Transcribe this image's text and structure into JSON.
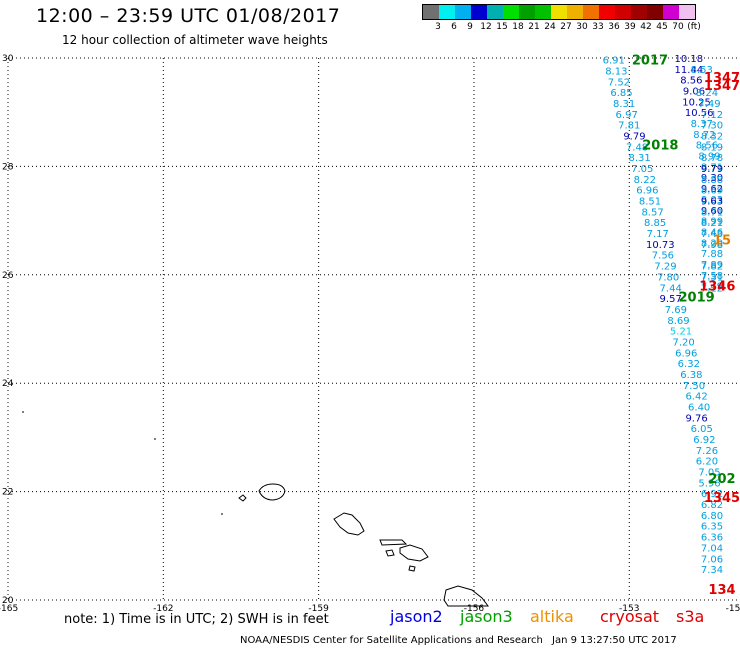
{
  "header": {
    "title": "12:00 – 23:59 UTC 01/08/2017",
    "subtitle": "12 hour collection of altimeter wave heights"
  },
  "legend": {
    "colors": [
      "#707070",
      "#00f0f0",
      "#00b0f0",
      "#0000d0",
      "#00b0b0",
      "#00e000",
      "#00a000",
      "#00c000",
      "#f0e000",
      "#f0b000",
      "#f07000",
      "#f00000",
      "#d00000",
      "#a00000",
      "#800000",
      "#d000d0",
      "#f0c0f0"
    ],
    "labels": [
      "3",
      "6",
      "9",
      "12",
      "15",
      "18",
      "21",
      "24",
      "27",
      "30",
      "33",
      "36",
      "39",
      "42",
      "45",
      "70",
      "(ft)"
    ]
  },
  "map": {
    "lon_ticks": [
      "-165",
      "-162",
      "-159",
      "-156",
      "-153",
      "-15"
    ],
    "lat_ticks": [
      "30",
      "28",
      "26",
      "24",
      "22",
      "20"
    ],
    "lon_range": [
      -165,
      -150.9
    ],
    "lat_range": [
      20,
      30
    ],
    "track_labels": [
      {
        "text": "2017",
        "lon": -152.6,
        "lat": 29.97,
        "color": "#008000"
      },
      {
        "text": "2018",
        "lon": -152.4,
        "lat": 28.4,
        "color": "#008000"
      },
      {
        "text": "2019",
        "lon": -151.7,
        "lat": 25.6,
        "color": "#008000"
      },
      {
        "text": "202",
        "lon": -151.0,
        "lat": 22.25,
        "color": "#008000"
      },
      {
        "text": "1347",
        "lon": -151.15,
        "lat": 29.65,
        "color": "#e00000"
      },
      {
        "text": "1347",
        "lon": -151.1,
        "lat": 29.5,
        "color": "#e00000"
      },
      {
        "text": "1346",
        "lon": -151.3,
        "lat": 25.8,
        "color": "#e00000"
      },
      {
        "text": "1345",
        "lon": -151.2,
        "lat": 21.9,
        "color": "#e00000"
      },
      {
        "text": "134",
        "lon": -151.0,
        "lat": 20.2,
        "color": "#e00000"
      },
      {
        "text": "15",
        "lon": -150.9,
        "lat": 26.65,
        "color": "#e08000"
      }
    ],
    "observations": [
      {
        "v": "6.91",
        "lon": -153.3,
        "lat": 29.97,
        "c": "#00a0e0"
      },
      {
        "v": "8.13",
        "lon": -153.25,
        "lat": 29.77,
        "c": "#00a0e0"
      },
      {
        "v": "7.52",
        "lon": -153.2,
        "lat": 29.57,
        "c": "#00a0e0"
      },
      {
        "v": "6.85",
        "lon": -153.15,
        "lat": 29.37,
        "c": "#00a0e0"
      },
      {
        "v": "8.31",
        "lon": -153.1,
        "lat": 29.17,
        "c": "#00a0e0"
      },
      {
        "v": "6.97",
        "lon": -153.05,
        "lat": 28.97,
        "c": "#00a0e0"
      },
      {
        "v": "7.81",
        "lon": -153.0,
        "lat": 28.77,
        "c": "#00a0e0"
      },
      {
        "v": "9.79",
        "lon": -152.9,
        "lat": 28.57,
        "c": "#0000b0"
      },
      {
        "v": "7.48",
        "lon": -152.85,
        "lat": 28.37,
        "c": "#00a0e0"
      },
      {
        "v": "8.31",
        "lon": -152.8,
        "lat": 28.17,
        "c": "#00a0e0"
      },
      {
        "v": "7.05",
        "lon": -152.75,
        "lat": 27.97,
        "c": "#00a0e0"
      },
      {
        "v": "8.22",
        "lon": -152.7,
        "lat": 27.77,
        "c": "#00a0e0"
      },
      {
        "v": "6.96",
        "lon": -152.65,
        "lat": 27.57,
        "c": "#00a0e0"
      },
      {
        "v": "8.51",
        "lon": -152.6,
        "lat": 27.37,
        "c": "#00a0e0"
      },
      {
        "v": "8.57",
        "lon": -152.55,
        "lat": 27.17,
        "c": "#00a0e0"
      },
      {
        "v": "8.85",
        "lon": -152.5,
        "lat": 26.97,
        "c": "#00a0e0"
      },
      {
        "v": "7.17",
        "lon": -152.45,
        "lat": 26.77,
        "c": "#00a0e0"
      },
      {
        "v": "10.73",
        "lon": -152.4,
        "lat": 26.57,
        "c": "#0000b0"
      },
      {
        "v": "7.56",
        "lon": -152.35,
        "lat": 26.37,
        "c": "#00a0e0"
      },
      {
        "v": "7.29",
        "lon": -152.3,
        "lat": 26.17,
        "c": "#00a0e0"
      },
      {
        "v": "7.80",
        "lon": -152.25,
        "lat": 25.97,
        "c": "#00a0e0"
      },
      {
        "v": "7.44",
        "lon": -152.2,
        "lat": 25.77,
        "c": "#00a0e0"
      },
      {
        "v": "9.57",
        "lon": -152.2,
        "lat": 25.57,
        "c": "#0000b0"
      },
      {
        "v": "7.69",
        "lon": -152.1,
        "lat": 25.37,
        "c": "#00a0e0"
      },
      {
        "v": "8.69",
        "lon": -152.05,
        "lat": 25.17,
        "c": "#00a0e0"
      },
      {
        "v": "5.21",
        "lon": -152.0,
        "lat": 24.97,
        "c": "#00d0e0"
      },
      {
        "v": "7.20",
        "lon": -151.95,
        "lat": 24.77,
        "c": "#00a0e0"
      },
      {
        "v": "6.96",
        "lon": -151.9,
        "lat": 24.57,
        "c": "#00a0e0"
      },
      {
        "v": "6.32",
        "lon": -151.85,
        "lat": 24.37,
        "c": "#00a0e0"
      },
      {
        "v": "6.38",
        "lon": -151.8,
        "lat": 24.17,
        "c": "#00a0e0"
      },
      {
        "v": "7.50",
        "lon": -151.75,
        "lat": 23.97,
        "c": "#00a0e0"
      },
      {
        "v": "6.42",
        "lon": -151.7,
        "lat": 23.77,
        "c": "#00a0e0"
      },
      {
        "v": "6.40",
        "lon": -151.65,
        "lat": 23.57,
        "c": "#00a0e0"
      },
      {
        "v": "9.76",
        "lon": -151.7,
        "lat": 23.37,
        "c": "#0000b0"
      },
      {
        "v": "6.05",
        "lon": -151.6,
        "lat": 23.17,
        "c": "#00a0e0"
      },
      {
        "v": "6.92",
        "lon": -151.55,
        "lat": 22.97,
        "c": "#00a0e0"
      },
      {
        "v": "7.26",
        "lon": -151.5,
        "lat": 22.77,
        "c": "#00a0e0"
      },
      {
        "v": "6.20",
        "lon": -151.5,
        "lat": 22.57,
        "c": "#00a0e0"
      },
      {
        "v": "7.05",
        "lon": -151.45,
        "lat": 22.37,
        "c": "#00a0e0"
      },
      {
        "v": "5.96",
        "lon": -151.45,
        "lat": 22.17,
        "c": "#00a0e0"
      },
      {
        "v": "6.92",
        "lon": -151.4,
        "lat": 21.97,
        "c": "#00a0e0"
      },
      {
        "v": "6.82",
        "lon": -151.4,
        "lat": 21.77,
        "c": "#00a0e0"
      },
      {
        "v": "6.80",
        "lon": -151.35,
        "lat": 21.57,
        "c": "#00a0e0"
      },
      {
        "v": "6.35",
        "lon": -151.35,
        "lat": 21.37,
        "c": "#00a0e0"
      },
      {
        "v": "6.36",
        "lon": -151.3,
        "lat": 21.17,
        "c": "#00a0e0"
      },
      {
        "v": "7.04",
        "lon": -151.3,
        "lat": 20.97,
        "c": "#00a0e0"
      },
      {
        "v": "7.06",
        "lon": -151.25,
        "lat": 20.77,
        "c": "#00a0e0"
      },
      {
        "v": "7.34",
        "lon": -151.25,
        "lat": 20.57,
        "c": "#00a0e0"
      },
      {
        "v": "10.18",
        "lon": -151.85,
        "lat": 30.0,
        "c": "#0000b0"
      },
      {
        "v": "11.44",
        "lon": -151.85,
        "lat": 29.8,
        "c": "#0000b0"
      },
      {
        "v": "8.53",
        "lon": -151.6,
        "lat": 29.8,
        "c": "#00a0e0"
      },
      {
        "v": "8.56",
        "lon": -151.8,
        "lat": 29.6,
        "c": "#0000b0"
      },
      {
        "v": "9.06",
        "lon": -151.75,
        "lat": 29.4,
        "c": "#0000b0"
      },
      {
        "v": "8.24",
        "lon": -151.5,
        "lat": 29.37,
        "c": "#00a0e0"
      },
      {
        "v": "10.25",
        "lon": -151.7,
        "lat": 29.2,
        "c": "#0000b0"
      },
      {
        "v": "7.49",
        "lon": -151.45,
        "lat": 29.17,
        "c": "#00a0e0"
      },
      {
        "v": "10.56",
        "lon": -151.65,
        "lat": 29.0,
        "c": "#0000b0"
      },
      {
        "v": "7.12",
        "lon": -151.4,
        "lat": 28.97,
        "c": "#00a0e0"
      },
      {
        "v": "8.37",
        "lon": -151.6,
        "lat": 28.8,
        "c": "#00a0e0"
      },
      {
        "v": "7.30",
        "lon": -151.35,
        "lat": 28.77,
        "c": "#00a0e0"
      },
      {
        "v": "8.72",
        "lon": -151.55,
        "lat": 28.6,
        "c": "#00a0e0"
      },
      {
        "v": "8.32",
        "lon": -151.3,
        "lat": 28.57,
        "c": "#00a0e0"
      },
      {
        "v": "8.56",
        "lon": -151.5,
        "lat": 28.4,
        "c": "#00a0e0"
      },
      {
        "v": "8.19",
        "lon": -151.25,
        "lat": 28.37,
        "c": "#00a0e0"
      },
      {
        "v": "8.99",
        "lon": -151.45,
        "lat": 28.2,
        "c": "#00a0e0"
      },
      {
        "v": "8.78",
        "lon": -151.2,
        "lat": 28.17,
        "c": "#00a0e0"
      },
      {
        "v": "8.71",
        "lon": -151.4,
        "lat": 28.0,
        "c": "#00a0e0"
      },
      {
        "v": "9.79",
        "lon": -151.15,
        "lat": 27.97,
        "c": "#0000b0"
      },
      {
        "v": "9.30",
        "lon": -151.35,
        "lat": 27.8,
        "c": "#0000b0"
      },
      {
        "v": "8.88",
        "lon": -151.1,
        "lat": 27.77,
        "c": "#00a0e0"
      },
      {
        "v": "9.62",
        "lon": -151.3,
        "lat": 27.6,
        "c": "#0000b0"
      },
      {
        "v": "8.69",
        "lon": -151.05,
        "lat": 27.57,
        "c": "#00a0e0"
      },
      {
        "v": "8.03",
        "lon": -151.25,
        "lat": 27.4,
        "c": "#00a0e0"
      },
      {
        "v": "9.63",
        "lon": -151.0,
        "lat": 27.37,
        "c": "#0000b0"
      },
      {
        "v": "9.60",
        "lon": -151.2,
        "lat": 27.2,
        "c": "#0000b0"
      },
      {
        "v": "8.71",
        "lon": -150.95,
        "lat": 27.17,
        "c": "#00a0e0"
      },
      {
        "v": "8.99",
        "lon": -151.15,
        "lat": 27.0,
        "c": "#00a0e0"
      },
      {
        "v": "8.21",
        "lon": -150.9,
        "lat": 26.97,
        "c": "#00a0e0"
      },
      {
        "v": "8.46",
        "lon": -151.1,
        "lat": 26.8,
        "c": "#00a0e0"
      },
      {
        "v": "7.43",
        "lon": -150.9,
        "lat": 26.77,
        "c": "#00a0e0"
      },
      {
        "v": "8.20",
        "lon": -151.05,
        "lat": 26.6,
        "c": "#00a0e0"
      },
      {
        "v": "7.88",
        "lon": -151.0,
        "lat": 26.4,
        "c": "#00a0e0"
      },
      {
        "v": "7.98",
        "lon": -150.85,
        "lat": 26.57,
        "c": "#00a0e0"
      },
      {
        "v": "7.89",
        "lon": -150.95,
        "lat": 26.2,
        "c": "#00a0e0"
      },
      {
        "v": "7.82",
        "lon": -150.85,
        "lat": 26.17,
        "c": "#00a0e0"
      },
      {
        "v": "7.58",
        "lon": -150.9,
        "lat": 26.0,
        "c": "#00a0e0"
      },
      {
        "v": "7.31",
        "lon": -150.85,
        "lat": 25.97,
        "c": "#00a0e0"
      },
      {
        "v": "7.49",
        "lon": -150.85,
        "lat": 25.8,
        "c": "#00a0e0"
      },
      {
        "v": "7.12",
        "lon": -150.8,
        "lat": 25.77,
        "c": "#00a0e0"
      }
    ]
  },
  "note": "note: 1) Time is in UTC; 2) SWH is in feet",
  "satellites": [
    {
      "name": "jason2",
      "color": "#0000e0"
    },
    {
      "name": "jason3",
      "color": "#00a000"
    },
    {
      "name": "altika",
      "color": "#f09000"
    },
    {
      "name": "cryosat",
      "color": "#e00000"
    },
    {
      "name": "s3a",
      "color": "#e00000"
    }
  ],
  "credit": "NOAA/NESDIS Center for Satellite Applications and Research",
  "timestamp": "Jan  9 13:27:50 UTC 2017"
}
